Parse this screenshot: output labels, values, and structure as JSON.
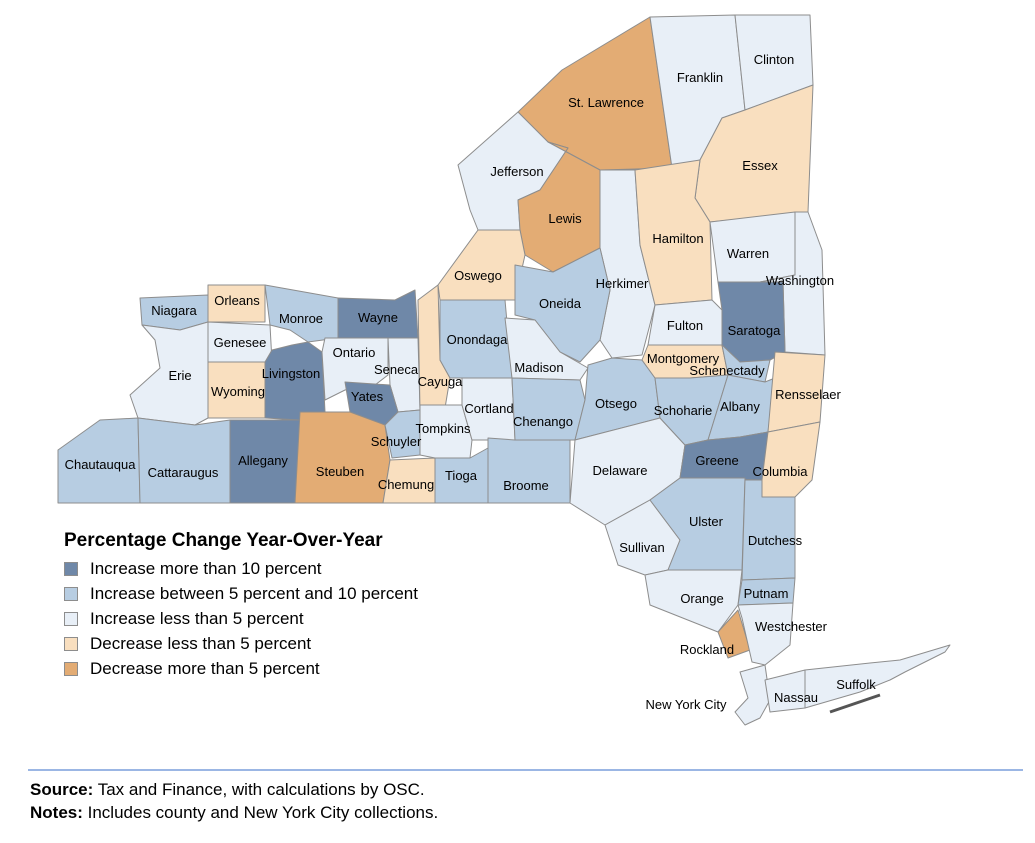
{
  "colors": {
    "inc_gt10": "#6f88a8",
    "inc_5_10": "#b7cde2",
    "inc_lt5": "#e8eff7",
    "dec_lt5": "#f9dfbf",
    "dec_gt5": "#e3ac74"
  },
  "legend": {
    "title": "Percentage Change Year-Over-Year",
    "items": [
      {
        "key": "inc_gt10",
        "label": "Increase more than 10 percent"
      },
      {
        "key": "inc_5_10",
        "label": "Increase between 5 percent and 10 percent"
      },
      {
        "key": "inc_lt5",
        "label": "Increase less than 5 percent"
      },
      {
        "key": "dec_lt5",
        "label": "Decrease less than 5 percent"
      },
      {
        "key": "dec_gt5",
        "label": "Decrease more than 5 percent"
      }
    ]
  },
  "counties": [
    {
      "name": "Niagara",
      "category": "inc_5_10"
    },
    {
      "name": "Orleans",
      "category": "dec_lt5"
    },
    {
      "name": "Monroe",
      "category": "inc_5_10"
    },
    {
      "name": "Wayne",
      "category": "inc_gt10"
    },
    {
      "name": "Genesee",
      "category": "inc_lt5"
    },
    {
      "name": "Erie",
      "category": "inc_lt5"
    },
    {
      "name": "Wyoming",
      "category": "dec_lt5"
    },
    {
      "name": "Livingston",
      "category": "inc_gt10"
    },
    {
      "name": "Ontario",
      "category": "inc_lt5"
    },
    {
      "name": "Seneca",
      "category": "inc_lt5"
    },
    {
      "name": "Yates",
      "category": "inc_gt10"
    },
    {
      "name": "Cayuga",
      "category": "dec_lt5"
    },
    {
      "name": "Chautauqua",
      "category": "inc_5_10"
    },
    {
      "name": "Cattaraugus",
      "category": "inc_5_10"
    },
    {
      "name": "Allegany",
      "category": "inc_gt10"
    },
    {
      "name": "Steuben",
      "category": "dec_gt5"
    },
    {
      "name": "Schuyler",
      "category": "inc_5_10"
    },
    {
      "name": "Chemung",
      "category": "dec_lt5"
    },
    {
      "name": "Tompkins",
      "category": "inc_lt5"
    },
    {
      "name": "Tioga",
      "category": "inc_5_10"
    },
    {
      "name": "Cortland",
      "category": "inc_lt5"
    },
    {
      "name": "Broome",
      "category": "inc_5_10"
    },
    {
      "name": "Onondaga",
      "category": "inc_5_10"
    },
    {
      "name": "Oswego",
      "category": "dec_lt5"
    },
    {
      "name": "Jefferson",
      "category": "inc_lt5"
    },
    {
      "name": "St. Lawrence",
      "category": "dec_gt5"
    },
    {
      "name": "Lewis",
      "category": "dec_gt5"
    },
    {
      "name": "Oneida",
      "category": "inc_5_10"
    },
    {
      "name": "Madison",
      "category": "inc_lt5"
    },
    {
      "name": "Chenango",
      "category": "inc_5_10"
    },
    {
      "name": "Herkimer",
      "category": "inc_lt5"
    },
    {
      "name": "Otsego",
      "category": "inc_5_10"
    },
    {
      "name": "Delaware",
      "category": "inc_lt5"
    },
    {
      "name": "Franklin",
      "category": "inc_lt5"
    },
    {
      "name": "Clinton",
      "category": "inc_lt5"
    },
    {
      "name": "Essex",
      "category": "dec_lt5"
    },
    {
      "name": "Hamilton",
      "category": "dec_lt5"
    },
    {
      "name": "Warren",
      "category": "inc_lt5"
    },
    {
      "name": "Washington",
      "category": "inc_lt5"
    },
    {
      "name": "Fulton",
      "category": "inc_lt5"
    },
    {
      "name": "Saratoga",
      "category": "inc_gt10"
    },
    {
      "name": "Montgomery",
      "category": "dec_lt5"
    },
    {
      "name": "Schenectady",
      "category": "inc_5_10"
    },
    {
      "name": "Schoharie",
      "category": "inc_5_10"
    },
    {
      "name": "Albany",
      "category": "inc_5_10"
    },
    {
      "name": "Rensselaer",
      "category": "dec_lt5"
    },
    {
      "name": "Greene",
      "category": "inc_gt10"
    },
    {
      "name": "Columbia",
      "category": "dec_lt5"
    },
    {
      "name": "Sullivan",
      "category": "inc_lt5"
    },
    {
      "name": "Ulster",
      "category": "inc_5_10"
    },
    {
      "name": "Dutchess",
      "category": "inc_5_10"
    },
    {
      "name": "Orange",
      "category": "inc_lt5"
    },
    {
      "name": "Putnam",
      "category": "inc_5_10"
    },
    {
      "name": "Rockland",
      "category": "dec_gt5"
    },
    {
      "name": "Westchester",
      "category": "inc_lt5"
    },
    {
      "name": "New York City",
      "category": "inc_lt5"
    },
    {
      "name": "Nassau",
      "category": "inc_lt5"
    },
    {
      "name": "Suffolk",
      "category": "inc_lt5"
    }
  ],
  "footer": {
    "source_label": "Source:",
    "source_text": " Tax and Finance, with calculations by OSC.",
    "notes_label": "Notes:",
    "notes_text": " Includes county and New York City collections."
  }
}
